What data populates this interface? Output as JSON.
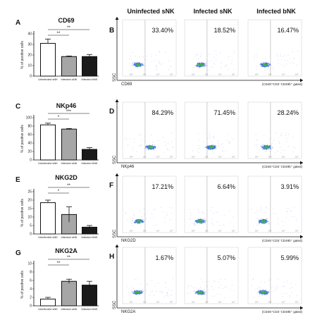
{
  "columns": [
    "Uninfected sNK",
    "Infected sNK",
    "Infected bNK"
  ],
  "chart_data": [
    {
      "type": "bar",
      "panel": "A",
      "title": "CD69",
      "ylabel": "% of positive cells",
      "categories": [
        "Uninfected sNK",
        "Infected sNK",
        "Infected bNK"
      ],
      "values": [
        31,
        18.5,
        18.5
      ],
      "errors": [
        4,
        0.5,
        2
      ],
      "ylim": [
        0,
        40
      ],
      "yticks": [
        "0",
        "10",
        "20",
        "30",
        "40"
      ],
      "fills": [
        "#ffffff",
        "#a6a6a6",
        "#1a1a1a"
      ],
      "significance": [
        {
          "from": 0,
          "to": 1,
          "label": "**"
        },
        {
          "from": 0,
          "to": 2,
          "label": "**"
        }
      ]
    },
    {
      "type": "bar",
      "panel": "C",
      "title": "NKp46",
      "ylabel": "% of positive cells",
      "categories": [
        "Uninfected sNK",
        "Infected sNK",
        "Infected bNK"
      ],
      "values": [
        83,
        73,
        25
      ],
      "errors": [
        4,
        1.5,
        4
      ],
      "ylim": [
        0,
        100
      ],
      "yticks": [
        "0",
        "20",
        "40",
        "60",
        "80",
        "100"
      ],
      "fills": [
        "#ffffff",
        "#a6a6a6",
        "#1a1a1a"
      ],
      "significance": [
        {
          "from": 0,
          "to": 1,
          "label": "*"
        },
        {
          "from": 0,
          "to": 2,
          "label": "***"
        }
      ]
    },
    {
      "type": "bar",
      "panel": "E",
      "title": "NKG2D",
      "ylabel": "% of positive cells",
      "categories": [
        "Uninfected sNK",
        "Infected sNK",
        "Infected bNK"
      ],
      "values": [
        18.5,
        11.5,
        4
      ],
      "errors": [
        1.5,
        4.5,
        1
      ],
      "ylim": [
        0,
        25
      ],
      "yticks": [
        "0",
        "5",
        "10",
        "15",
        "20",
        "25"
      ],
      "fills": [
        "#ffffff",
        "#a6a6a6",
        "#1a1a1a"
      ],
      "significance": [
        {
          "from": 0,
          "to": 1,
          "label": "*"
        },
        {
          "from": 0,
          "to": 2,
          "label": "**"
        }
      ]
    },
    {
      "type": "bar",
      "panel": "G",
      "title": "NKG2A",
      "ylabel": "% of positive cells",
      "categories": [
        "Uninfected sNK",
        "Infected sNK",
        "Infected bNK"
      ],
      "values": [
        1.6,
        5.8,
        4.9
      ],
      "errors": [
        0.4,
        0.5,
        0.9
      ],
      "ylim": [
        0,
        10
      ],
      "yticks": [
        "0",
        "2",
        "4",
        "6",
        "8",
        "10"
      ],
      "fills": [
        "#ffffff",
        "#a6a6a6",
        "#1a1a1a"
      ],
      "significance": [
        {
          "from": 0,
          "to": 1,
          "label": "**"
        },
        {
          "from": 0,
          "to": 2,
          "label": "**"
        }
      ]
    },
    {
      "type": "scatter",
      "panel": "B",
      "marker": "CD69",
      "ylabel": "SSC",
      "gating": "(CD45⁺CD3⁻CD49b⁺ gated)",
      "percentages": [
        "33.40%",
        "18.52%",
        "16.47%"
      ],
      "cluster_levels": [
        0.2,
        0.22,
        0.25
      ]
    },
    {
      "type": "scatter",
      "panel": "D",
      "marker": "NKp46",
      "ylabel": "SSC",
      "gating": "(CD45⁺CD3⁻CD49b⁺ gated)",
      "percentages": [
        "84.29%",
        "71.45%",
        "28.24%"
      ],
      "cluster_levels": [
        0.62,
        0.58,
        0.3
      ]
    },
    {
      "type": "scatter",
      "panel": "F",
      "marker": "NKG2D",
      "ylabel": "SSC",
      "gating": "(CD45⁺CD3⁻CD49b⁺ gated)",
      "percentages": [
        "17.21%",
        "6.64%",
        "3.91%"
      ],
      "cluster_levels": [
        0.22,
        0.2,
        0.18
      ]
    },
    {
      "type": "scatter",
      "panel": "H",
      "marker": "NKG2A",
      "ylabel": "SSC",
      "gating": "(CD45⁺CD3⁻CD49b⁺ gated)",
      "percentages": [
        "1.67%",
        "5.07%",
        "5.99%"
      ],
      "cluster_levels": [
        0.18,
        0.2,
        0.2
      ]
    }
  ]
}
